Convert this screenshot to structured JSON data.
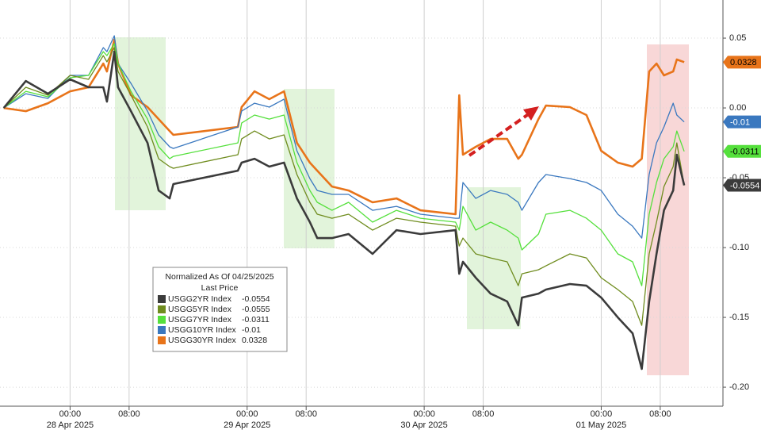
{
  "chart_data": {
    "type": "line",
    "legend_title": "Normalized As Of 04/25/2025",
    "legend_subtitle": "Last Price",
    "x": [
      "2025-04-27T15:00",
      "2025-04-27T18:00",
      "2025-04-27T21:00",
      "2025-04-28T00:00",
      "2025-04-28T02:30",
      "2025-04-28T04:30",
      "2025-04-28T05:00",
      "2025-04-28T06:00",
      "2025-04-28T06:30",
      "2025-04-28T08:15",
      "2025-04-28T10:30",
      "2025-04-28T12:00",
      "2025-04-28T13:30",
      "2025-04-28T14:00",
      "2025-04-28T22:45",
      "2025-04-28T23:15",
      "2025-04-29T01:00",
      "2025-04-29T03:00",
      "2025-04-29T05:00",
      "2025-04-29T06:45",
      "2025-04-29T08:30",
      "2025-04-29T09:30",
      "2025-04-29T11:30",
      "2025-04-29T13:45",
      "2025-04-29T17:00",
      "2025-04-29T20:15",
      "2025-04-29T23:30",
      "2025-04-30T04:15",
      "2025-04-30T04:45",
      "2025-04-30T05:15",
      "2025-04-30T07:00",
      "2025-04-30T09:00",
      "2025-04-30T11:15",
      "2025-04-30T12:45",
      "2025-04-30T13:15",
      "2025-04-30T15:30",
      "2025-04-30T16:30",
      "2025-04-30T19:45",
      "2025-04-30T22:00",
      "2025-05-01T00:00",
      "2025-05-01T02:15",
      "2025-05-01T04:15",
      "2025-05-01T05:30",
      "2025-05-01T06:30",
      "2025-05-01T07:30",
      "2025-05-01T08:30",
      "2025-05-01T09:45",
      "2025-05-01T10:15",
      "2025-05-01T11:15"
    ],
    "series": [
      {
        "name": "USGG2YR Index",
        "color": "#3b3b3b",
        "last": -0.0554,
        "show_tag": true,
        "tag_text": "#ffffff",
        "values": [
          0,
          0.0193,
          0.0102,
          0.0205,
          0.0148,
          0.0148,
          0.0045,
          0.0403,
          0.0148,
          -0.0023,
          -0.025,
          -0.0591,
          -0.0648,
          -0.0545,
          -0.0449,
          -0.0392,
          -0.0364,
          -0.042,
          -0.0392,
          -0.0648,
          -0.0818,
          -0.0932,
          -0.0932,
          -0.0903,
          -0.1045,
          -0.0875,
          -0.0903,
          -0.0875,
          -0.1188,
          -0.1102,
          -0.1216,
          -0.133,
          -0.1386,
          -0.1557,
          -0.1358,
          -0.133,
          -0.1301,
          -0.1261,
          -0.1273,
          -0.1358,
          -0.15,
          -0.1614,
          -0.1869,
          -0.1386,
          -0.1045,
          -0.0733,
          -0.0591,
          -0.0335,
          -0.0554
        ]
      },
      {
        "name": "USGG5YR Index",
        "color": "#6f8c1e",
        "last": -0.0555,
        "show_tag": false,
        "tag_text": "#ffffff",
        "values": [
          0,
          0.0148,
          0.0091,
          0.0233,
          0.0205,
          0.0375,
          0.033,
          0.0432,
          0.0261,
          0.0091,
          -0.0136,
          -0.0364,
          -0.042,
          -0.0432,
          -0.0335,
          -0.0222,
          -0.0165,
          -0.0222,
          -0.0193,
          -0.0477,
          -0.0676,
          -0.0761,
          -0.079,
          -0.0761,
          -0.0875,
          -0.079,
          -0.0818,
          -0.0847,
          -0.0989,
          -0.0932,
          -0.1045,
          -0.1074,
          -0.1102,
          -0.1273,
          -0.1188,
          -0.1159,
          -0.1131,
          -0.1045,
          -0.1074,
          -0.1216,
          -0.1301,
          -0.1386,
          -0.1557,
          -0.1045,
          -0.0818,
          -0.0563,
          -0.042,
          -0.025,
          -0.0555
        ]
      },
      {
        "name": "USGG7YR Index",
        "color": "#55e03c",
        "last": -0.0311,
        "show_tag": true,
        "tag_text": "#000000",
        "values": [
          0,
          0.0119,
          0.008,
          0.0216,
          0.0233,
          0.0403,
          0.0375,
          0.046,
          0.0318,
          0.0119,
          -0.008,
          -0.0278,
          -0.0364,
          -0.0347,
          -0.025,
          -0.0108,
          -0.0051,
          -0.008,
          -0.0051,
          -0.0392,
          -0.0591,
          -0.0676,
          -0.0733,
          -0.0676,
          -0.0818,
          -0.0733,
          -0.079,
          -0.0818,
          -0.0875,
          -0.0705,
          -0.0875,
          -0.0818,
          -0.0875,
          -0.0932,
          -0.1017,
          -0.0903,
          -0.0761,
          -0.0733,
          -0.079,
          -0.0875,
          -0.1045,
          -0.1102,
          -0.1273,
          -0.0761,
          -0.0534,
          -0.0364,
          -0.0278,
          -0.0165,
          -0.0311
        ]
      },
      {
        "name": "USGG10YR Index",
        "color": "#3a78bf",
        "last": -0.01,
        "show_tag": true,
        "tag_text": "#ffffff",
        "values": [
          0,
          0.0102,
          0.0068,
          0.0233,
          0.0233,
          0.0432,
          0.0403,
          0.0517,
          0.0318,
          0.0176,
          -0.0023,
          -0.0193,
          -0.0278,
          -0.029,
          -0.0136,
          -0.0023,
          0.0034,
          0.0006,
          0.0063,
          -0.0307,
          -0.0506,
          -0.0591,
          -0.0619,
          -0.0619,
          -0.0733,
          -0.0705,
          -0.0761,
          -0.079,
          -0.079,
          -0.0534,
          -0.0648,
          -0.0591,
          -0.0619,
          -0.0676,
          -0.0733,
          -0.0534,
          -0.0477,
          -0.0506,
          -0.0534,
          -0.0591,
          -0.0761,
          -0.0847,
          -0.0932,
          -0.0477,
          -0.025,
          -0.0136,
          0.0034,
          -0.0051,
          -0.01
        ]
      },
      {
        "name": "USGG30YR Index",
        "color": "#e8741a",
        "last": 0.0328,
        "show_tag": true,
        "tag_text": "#000000",
        "values": [
          0,
          -0.0023,
          0.0034,
          0.0119,
          0.0148,
          0.0318,
          0.0261,
          0.0489,
          0.0318,
          0.0091,
          0.0006,
          -0.008,
          -0.0165,
          -0.0193,
          -0.0136,
          0.0006,
          0.0119,
          0.0063,
          0.0119,
          -0.025,
          -0.0392,
          -0.0449,
          -0.0563,
          -0.0591,
          -0.0676,
          -0.0648,
          -0.0733,
          -0.0761,
          0.0091,
          -0.0335,
          -0.0278,
          -0.0222,
          -0.0222,
          -0.0364,
          -0.0335,
          -0.008,
          0.0017,
          0.0006,
          -0.0051,
          -0.0307,
          -0.0392,
          -0.042,
          -0.0364,
          0.0261,
          0.0318,
          0.0233,
          0.0261,
          0.0347,
          0.0328
        ]
      }
    ],
    "xlim": [
      "2025-04-27T14:30",
      "2025-05-01T16:30"
    ],
    "xticks": [
      {
        "value": "2025-04-28T00:00",
        "label": "00:00"
      },
      {
        "value": "2025-04-28T08:00",
        "label": "08:00"
      },
      {
        "value": "2025-04-29T00:00",
        "label": "00:00"
      },
      {
        "value": "2025-04-29T08:00",
        "label": "08:00"
      },
      {
        "value": "2025-04-30T00:00",
        "label": "00:00"
      },
      {
        "value": "2025-04-30T08:00",
        "label": "08:00"
      },
      {
        "value": "2025-05-01T00:00",
        "label": "00:00"
      },
      {
        "value": "2025-05-01T08:00",
        "label": "08:00"
      }
    ],
    "date_labels": [
      {
        "value": "2025-04-28T00:00",
        "label": "28 Apr 2025"
      },
      {
        "value": "2025-04-29T00:00",
        "label": "29 Apr 2025"
      },
      {
        "value": "2025-04-30T00:00",
        "label": "30 Apr 2025"
      },
      {
        "value": "2025-05-01T00:00",
        "label": "01 May 2025"
      }
    ],
    "ylim": [
      -0.2136,
      0.0773
    ],
    "yticks": [
      0.05,
      {
        "value": 0,
        "label": "0.00"
      },
      -0.05,
      {
        "value": -0.1,
        "label": "-0.10"
      },
      -0.15,
      {
        "value": -0.2,
        "label": "-0.20"
      }
    ],
    "grid": true
  }
}
